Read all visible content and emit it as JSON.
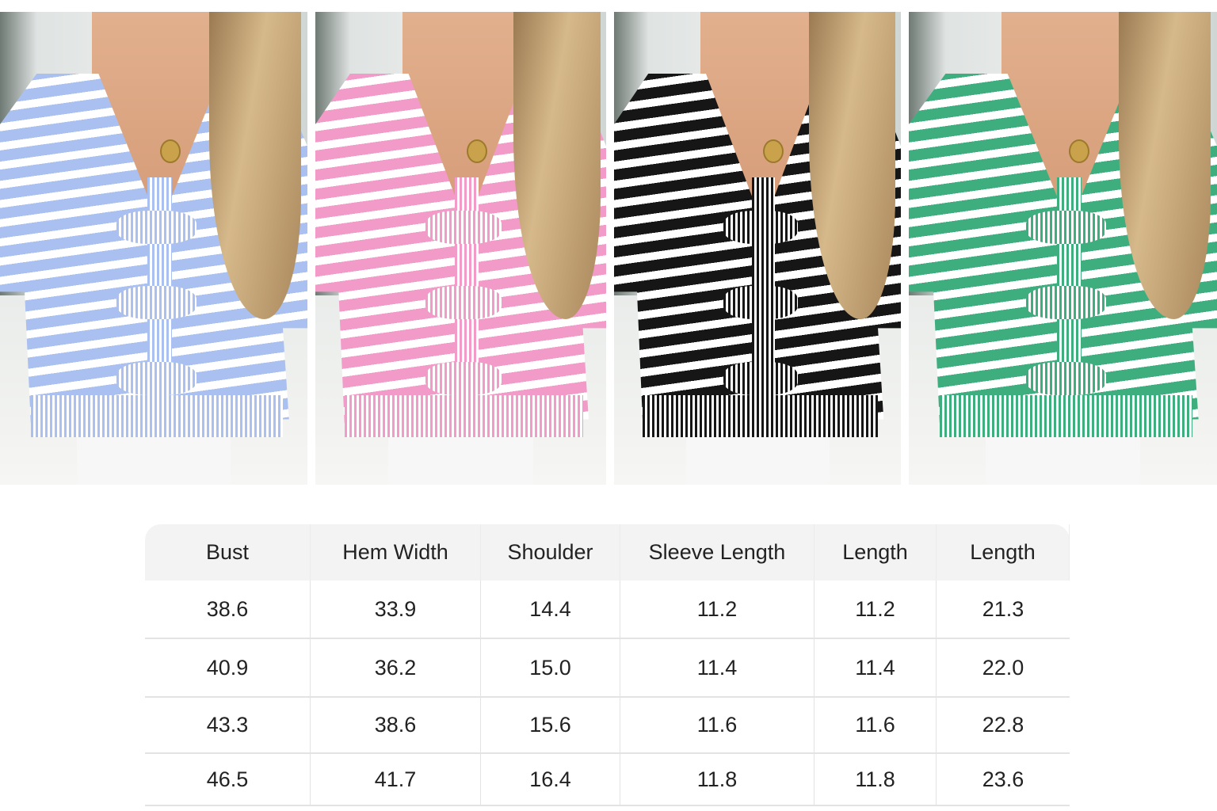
{
  "variants": [
    {
      "color_name": "blue",
      "color": "#a9c0f0",
      "stripe": "#ffffff"
    },
    {
      "color_name": "pink",
      "color": "#f29bc9",
      "stripe": "#ffffff"
    },
    {
      "color_name": "black",
      "color": "#161616",
      "stripe": "#ffffff"
    },
    {
      "color_name": "green",
      "color": "#3fae7f",
      "stripe": "#ffffff"
    }
  ],
  "size_table": {
    "headers": [
      "Bust",
      "Hem Width",
      "Shoulder",
      "Sleeve Length",
      "Length",
      "Length"
    ],
    "rows": [
      [
        "38.6",
        "33.9",
        "14.4",
        "11.2",
        "11.2",
        "21.3"
      ],
      [
        "40.9",
        "36.2",
        "15.0",
        "11.4",
        "11.4",
        "22.0"
      ],
      [
        "43.3",
        "38.6",
        "15.6",
        "11.6",
        "11.6",
        "22.8"
      ],
      [
        "46.5",
        "41.7",
        "16.4",
        "11.8",
        "11.8",
        "23.6"
      ]
    ]
  }
}
